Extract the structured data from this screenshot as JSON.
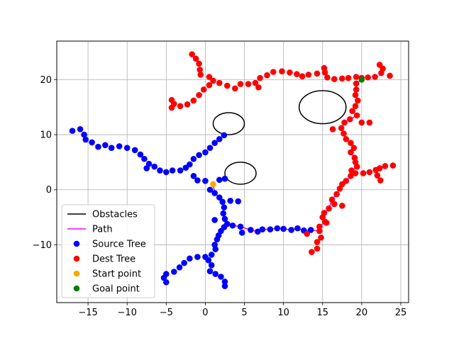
{
  "chart_data": {
    "type": "scatter",
    "xlim": [
      -19,
      26
    ],
    "ylim": [
      -20.5,
      27
    ],
    "xticks": [
      -15,
      -10,
      -5,
      0,
      5,
      10,
      15,
      20,
      25
    ],
    "yticks": [
      -10,
      0,
      10,
      20
    ],
    "grid": true,
    "legend_position": "lower-left",
    "colors": {
      "source": "#0000ff",
      "dest": "#ff0000",
      "path": "#ff00ff",
      "obstacle": "#000000",
      "start": "#ffa500",
      "goal": "#008000",
      "grid": "#b0b0b0"
    },
    "legend": [
      {
        "label": "Obstacles",
        "kind": "line",
        "color": "#000000"
      },
      {
        "label": "Path",
        "kind": "line",
        "color": "#ff00ff"
      },
      {
        "label": "Source Tree",
        "kind": "dot",
        "color": "#0000ff"
      },
      {
        "label": "Dest Tree",
        "kind": "dot",
        "color": "#ff0000"
      },
      {
        "label": "Start point",
        "kind": "dot",
        "color": "#ffa500"
      },
      {
        "label": "Goal point",
        "kind": "dot",
        "color": "#008000"
      }
    ],
    "obstacles": [
      {
        "cx": 3,
        "cy": 12,
        "rx": 2,
        "ry": 2
      },
      {
        "cx": 4.5,
        "cy": 3,
        "rx": 2,
        "ry": 2
      },
      {
        "cx": 15,
        "cy": 15,
        "rx": 3,
        "ry": 3
      }
    ],
    "start": [
      1,
      1
    ],
    "goal": [
      20,
      20
    ],
    "source_tree": [
      [
        -17,
        10.7
      ],
      [
        -16,
        11
      ],
      [
        -15.5,
        10
      ],
      [
        -15.3,
        9.1
      ],
      [
        -14.5,
        8.6
      ],
      [
        -13.7,
        7.8
      ],
      [
        -12.8,
        8.1
      ],
      [
        -12,
        7.6
      ],
      [
        -11,
        7.9
      ],
      [
        -10,
        7.6
      ],
      [
        -9,
        7.2
      ],
      [
        -8.3,
        6.4
      ],
      [
        -7.8,
        5.6
      ],
      [
        -7.2,
        4.7
      ],
      [
        -6.5,
        4.2
      ],
      [
        -7.5,
        3.9
      ],
      [
        -5.8,
        3.5
      ],
      [
        -5,
        3.2
      ],
      [
        -4.2,
        3.5
      ],
      [
        -3.2,
        3.5
      ],
      [
        -2.5,
        4
      ],
      [
        -2,
        4.6
      ],
      [
        -1.5,
        5.6
      ],
      [
        -0.8,
        6.3
      ],
      [
        0,
        6.8
      ],
      [
        0.6,
        7.6
      ],
      [
        1.2,
        8.5
      ],
      [
        1.8,
        9.2
      ],
      [
        2.4,
        9.9
      ],
      [
        -1.5,
        2.5
      ],
      [
        -1,
        1.7
      ],
      [
        0,
        1.6
      ],
      [
        1.8,
        1.8
      ],
      [
        2.5,
        2
      ],
      [
        0.6,
        0
      ],
      [
        1.2,
        -0.6
      ],
      [
        1.8,
        -1.4
      ],
      [
        2.2,
        -2.2
      ],
      [
        2.4,
        -3.2
      ],
      [
        2.3,
        -4.3
      ],
      [
        2.5,
        -5.3
      ],
      [
        1.2,
        -5.5
      ],
      [
        2.8,
        -6.2
      ],
      [
        3.5,
        -6.5
      ],
      [
        3.2,
        -2
      ],
      [
        4.2,
        -2.1
      ],
      [
        4.5,
        -6.7
      ],
      [
        4.7,
        -7.8
      ],
      [
        5.8,
        -7.3
      ],
      [
        6.7,
        -7.6
      ],
      [
        7.3,
        -7.2
      ],
      [
        8.3,
        -7.2
      ],
      [
        9.2,
        -7
      ],
      [
        10,
        -7.1
      ],
      [
        11,
        -7.3
      ],
      [
        11.8,
        -7
      ],
      [
        12.6,
        -7.4
      ],
      [
        13.5,
        -7.3
      ],
      [
        2.4,
        -6.8
      ],
      [
        2,
        -7.5
      ],
      [
        1.7,
        -8.3
      ],
      [
        1.5,
        -9
      ],
      [
        1.2,
        -10
      ],
      [
        1.3,
        -10.8
      ],
      [
        0.8,
        -11.8
      ],
      [
        0.4,
        -12.8
      ],
      [
        0.8,
        -13.7
      ],
      [
        0.6,
        -14.8
      ],
      [
        1.3,
        -15.3
      ],
      [
        2,
        -15.8
      ],
      [
        2.5,
        -16.7
      ],
      [
        2.5,
        -17.5
      ],
      [
        0,
        -12.2
      ],
      [
        -1,
        -12.2
      ],
      [
        -2,
        -12.5
      ],
      [
        -2.7,
        -13.3
      ],
      [
        -3.3,
        -14.1
      ],
      [
        -4,
        -14.9
      ],
      [
        -5,
        -15.3
      ],
      [
        -5.3,
        -16
      ],
      [
        -5,
        -16.8
      ]
    ],
    "dest_tree": [
      [
        -1.7,
        24.6
      ],
      [
        -1.2,
        23.8
      ],
      [
        -0.8,
        22.9
      ],
      [
        -0.7,
        21.8
      ],
      [
        -0.6,
        20.9
      ],
      [
        0.5,
        20.5
      ],
      [
        1,
        19.8
      ],
      [
        1.8,
        19.4
      ],
      [
        2.8,
        18.9
      ],
      [
        3.8,
        18.4
      ],
      [
        4.5,
        19.2
      ],
      [
        5.5,
        19.2
      ],
      [
        6.4,
        19.4
      ],
      [
        6.8,
        18.6
      ],
      [
        7,
        20.3
      ],
      [
        7.9,
        20.8
      ],
      [
        8.7,
        21.4
      ],
      [
        9.8,
        21.5
      ],
      [
        10.8,
        21.3
      ],
      [
        11.7,
        21
      ],
      [
        12.4,
        20.6
      ],
      [
        13.2,
        20.9
      ],
      [
        14.3,
        21.1
      ],
      [
        15.3,
        21.3
      ],
      [
        15.2,
        22.1
      ],
      [
        15.6,
        20.4
      ],
      [
        16.5,
        20.1
      ],
      [
        17.5,
        20.2
      ],
      [
        18.3,
        20.3
      ],
      [
        19.3,
        20.5
      ],
      [
        20,
        20.3
      ],
      [
        20.8,
        20.4
      ],
      [
        21.7,
        20.5
      ],
      [
        22.5,
        21.2
      ],
      [
        22.3,
        22.7
      ],
      [
        22.7,
        22
      ],
      [
        23.6,
        20.7
      ],
      [
        0.5,
        19
      ],
      [
        -0.2,
        18.2
      ],
      [
        -0.8,
        17.2
      ],
      [
        -1.5,
        16.2
      ],
      [
        -2.3,
        15.5
      ],
      [
        -3.2,
        15.2
      ],
      [
        -4,
        15.6
      ],
      [
        -4.3,
        16.3
      ],
      [
        -4.3,
        14.9
      ],
      [
        19.3,
        19.3
      ],
      [
        19.3,
        18.2
      ],
      [
        19.2,
        17.2
      ],
      [
        19.5,
        16.2
      ],
      [
        19.2,
        15.2
      ],
      [
        18.8,
        14.3
      ],
      [
        19.4,
        13.5
      ],
      [
        18.5,
        12.8
      ],
      [
        17.8,
        12.2
      ],
      [
        17.4,
        11.2
      ],
      [
        16.3,
        11
      ],
      [
        20,
        12.2
      ],
      [
        21,
        12.2
      ],
      [
        17.7,
        10.2
      ],
      [
        18,
        9.2
      ],
      [
        18.6,
        8.5
      ],
      [
        19,
        7.6
      ],
      [
        18.6,
        6.8
      ],
      [
        19.1,
        5.8
      ],
      [
        19.2,
        5
      ],
      [
        19.4,
        4.2
      ],
      [
        18.7,
        3.5
      ],
      [
        19.2,
        3
      ],
      [
        18.6,
        2.5
      ],
      [
        20.2,
        3
      ],
      [
        21,
        3.2
      ],
      [
        21.8,
        3.6
      ],
      [
        22,
        2.6
      ],
      [
        22.4,
        1.7
      ],
      [
        22.3,
        3.9
      ],
      [
        23,
        4.3
      ],
      [
        24,
        4.4
      ],
      [
        18,
        1.6
      ],
      [
        17.5,
        1
      ],
      [
        17.2,
        0.2
      ],
      [
        16.8,
        -0.8
      ],
      [
        16.2,
        -1.8
      ],
      [
        16.5,
        -2.6
      ],
      [
        17.5,
        -2.9
      ],
      [
        15.8,
        -3.4
      ],
      [
        15.2,
        -4.2
      ],
      [
        15,
        -5
      ],
      [
        15.3,
        -5.8
      ],
      [
        14.6,
        -6.7
      ],
      [
        14.6,
        -7.5
      ],
      [
        14.8,
        -8.7
      ],
      [
        14.3,
        -9.5
      ],
      [
        14.3,
        -10.7
      ],
      [
        13.6,
        -11.3
      ],
      [
        13,
        -8
      ],
      [
        15.5,
        -6
      ]
    ],
    "path": [
      [
        1,
        1
      ],
      [
        1.2,
        -0.6
      ],
      [
        1.8,
        -1.4
      ],
      [
        2.2,
        -2.2
      ],
      [
        2.4,
        -3.2
      ],
      [
        2.3,
        -4.3
      ],
      [
        2.5,
        -5.3
      ],
      [
        2.8,
        -6.2
      ],
      [
        3.5,
        -6.5
      ],
      [
        4.5,
        -6.7
      ],
      [
        5.8,
        -7.3
      ],
      [
        6.7,
        -7.6
      ],
      [
        7.3,
        -7.2
      ],
      [
        8.3,
        -7.2
      ],
      [
        9.2,
        -7
      ],
      [
        10,
        -7.1
      ],
      [
        11,
        -7.3
      ],
      [
        11.8,
        -7
      ],
      [
        12.6,
        -7.4
      ],
      [
        13.5,
        -7.3
      ],
      [
        14.6,
        -7.5
      ],
      [
        14.6,
        -6.7
      ],
      [
        15.3,
        -5.8
      ],
      [
        15,
        -5
      ],
      [
        15.2,
        -4.2
      ],
      [
        15.8,
        -3.4
      ],
      [
        16.2,
        -1.8
      ],
      [
        16.8,
        -0.8
      ],
      [
        17.2,
        0.2
      ],
      [
        17.5,
        1
      ],
      [
        18,
        1.6
      ],
      [
        18.6,
        2.5
      ],
      [
        19.2,
        3
      ],
      [
        18.7,
        3.5
      ],
      [
        19.4,
        4.2
      ],
      [
        19.2,
        5
      ],
      [
        19.1,
        5.8
      ],
      [
        18.6,
        6.8
      ],
      [
        19,
        7.6
      ],
      [
        18.6,
        8.5
      ],
      [
        18,
        9.2
      ],
      [
        17.7,
        10.2
      ],
      [
        17.4,
        11.2
      ],
      [
        17.8,
        12.2
      ],
      [
        18.5,
        12.8
      ],
      [
        19.4,
        13.5
      ],
      [
        18.8,
        14.3
      ],
      [
        19.2,
        15.2
      ],
      [
        19.5,
        16.2
      ],
      [
        19.2,
        17.2
      ],
      [
        19.3,
        18.2
      ],
      [
        19.3,
        19.3
      ],
      [
        20,
        20
      ]
    ]
  }
}
